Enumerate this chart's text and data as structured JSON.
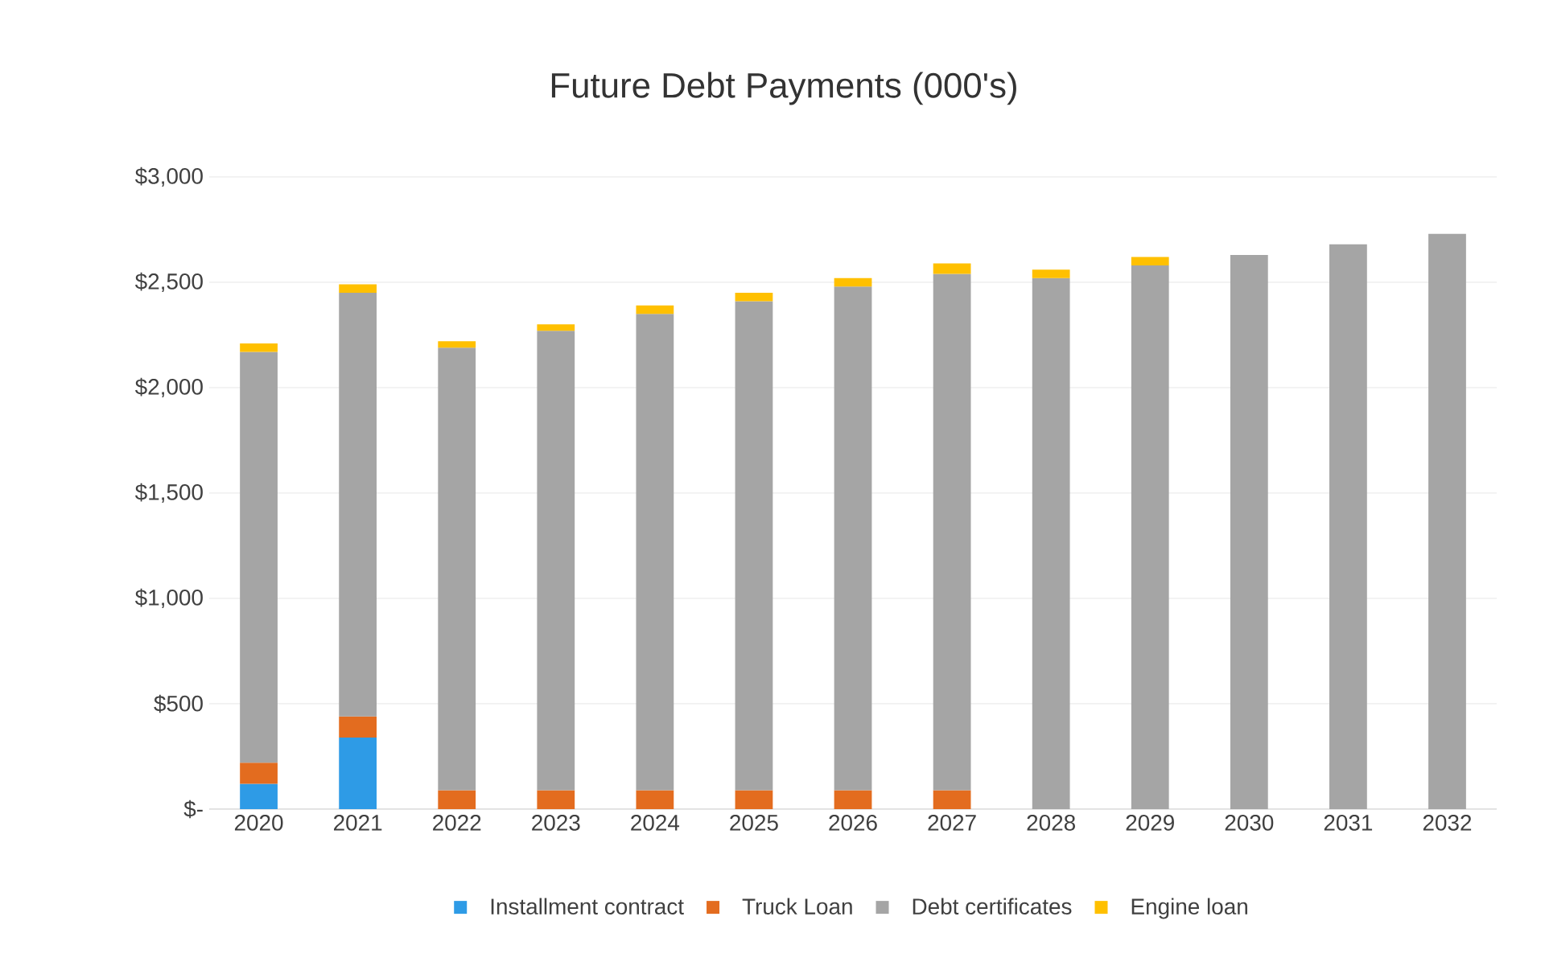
{
  "chart_data": {
    "type": "bar",
    "title": "Future Debt Payments (000's)",
    "stacked": true,
    "grid": "y",
    "legend": "bottom",
    "categories": [
      "2020",
      "2021",
      "2022",
      "2023",
      "2024",
      "2025",
      "2026",
      "2027",
      "2028",
      "2029",
      "2030",
      "2031",
      "2032"
    ],
    "ylim": [
      0,
      3000
    ],
    "yticks": [
      {
        "value": 0,
        "label": "$-"
      },
      {
        "value": 500,
        "label": "$500"
      },
      {
        "value": 1000,
        "label": "$1,000"
      },
      {
        "value": 1500,
        "label": "$1,500"
      },
      {
        "value": 2000,
        "label": "$2,000"
      },
      {
        "value": 2500,
        "label": "$2,500"
      },
      {
        "value": 3000,
        "label": "$3,000"
      }
    ],
    "series": [
      {
        "name": "Installment contract",
        "color": "#2e9be6",
        "values": [
          120,
          340,
          null,
          null,
          null,
          null,
          null,
          null,
          null,
          null,
          null,
          null,
          null
        ]
      },
      {
        "name": "Truck Loan",
        "color": "#e36c1f",
        "values": [
          100,
          100,
          90,
          90,
          90,
          90,
          90,
          90,
          null,
          null,
          null,
          null,
          null
        ]
      },
      {
        "name": "Debt certificates",
        "color": "#a5a5a5",
        "values": [
          1950,
          2010,
          2100,
          2180,
          2260,
          2320,
          2390,
          2450,
          2520,
          2580,
          2630,
          2680,
          2730
        ]
      },
      {
        "name": "Engine loan",
        "color": "#ffc000",
        "values": [
          40,
          40,
          30,
          30,
          40,
          40,
          40,
          50,
          40,
          40,
          null,
          null,
          null
        ]
      }
    ]
  }
}
